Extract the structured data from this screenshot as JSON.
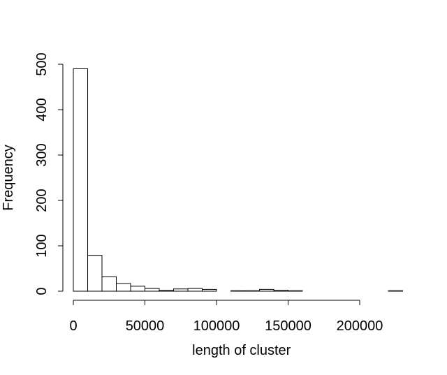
{
  "chart_data": {
    "type": "bar",
    "subtype": "histogram",
    "title": "",
    "xlabel": "length of cluster",
    "ylabel": "Frequency",
    "xlim": [
      0,
      230000
    ],
    "ylim": [
      0,
      500
    ],
    "bin_width": 10000,
    "bins": [
      {
        "x0": 0,
        "x1": 10000,
        "count": 490
      },
      {
        "x0": 10000,
        "x1": 20000,
        "count": 79
      },
      {
        "x0": 20000,
        "x1": 30000,
        "count": 32
      },
      {
        "x0": 30000,
        "x1": 40000,
        "count": 17
      },
      {
        "x0": 40000,
        "x1": 50000,
        "count": 11
      },
      {
        "x0": 50000,
        "x1": 60000,
        "count": 6
      },
      {
        "x0": 60000,
        "x1": 70000,
        "count": 2
      },
      {
        "x0": 70000,
        "x1": 80000,
        "count": 5
      },
      {
        "x0": 80000,
        "x1": 90000,
        "count": 6
      },
      {
        "x0": 90000,
        "x1": 100000,
        "count": 4
      },
      {
        "x0": 100000,
        "x1": 110000,
        "count": 0
      },
      {
        "x0": 110000,
        "x1": 120000,
        "count": 1
      },
      {
        "x0": 120000,
        "x1": 130000,
        "count": 1
      },
      {
        "x0": 130000,
        "x1": 140000,
        "count": 4
      },
      {
        "x0": 140000,
        "x1": 150000,
        "count": 2
      },
      {
        "x0": 150000,
        "x1": 160000,
        "count": 1
      },
      {
        "x0": 160000,
        "x1": 170000,
        "count": 0
      },
      {
        "x0": 170000,
        "x1": 180000,
        "count": 0
      },
      {
        "x0": 180000,
        "x1": 190000,
        "count": 0
      },
      {
        "x0": 190000,
        "x1": 200000,
        "count": 0
      },
      {
        "x0": 200000,
        "x1": 210000,
        "count": 0
      },
      {
        "x0": 210000,
        "x1": 220000,
        "count": 0
      },
      {
        "x0": 220000,
        "x1": 230000,
        "count": 1
      }
    ],
    "x_ticks": [
      0,
      50000,
      100000,
      150000,
      200000
    ],
    "x_tick_labels": [
      "0",
      "50000",
      "100000",
      "150000",
      "200000"
    ],
    "y_ticks": [
      0,
      100,
      200,
      300,
      400,
      500
    ],
    "y_tick_labels": [
      "0",
      "100",
      "200",
      "300",
      "400",
      "500"
    ],
    "colors": {
      "bar_fill": "#ffffff",
      "bar_stroke": "#000000",
      "axis": "#000000"
    },
    "grid": false,
    "legend": "none"
  }
}
